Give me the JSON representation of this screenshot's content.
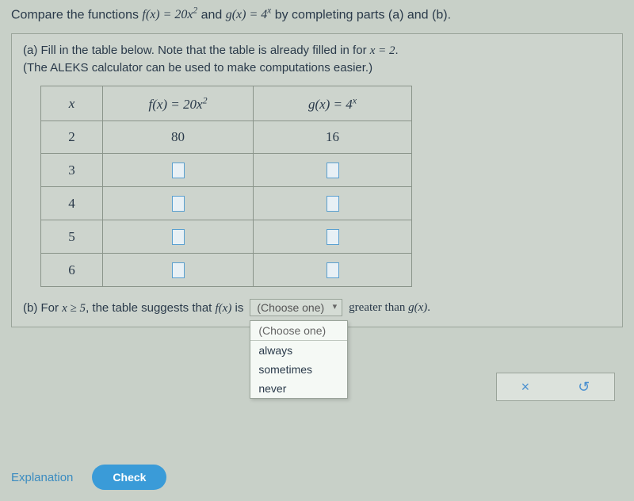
{
  "prompt": {
    "pre": "Compare the functions ",
    "f_expr": "f(x) = 20x",
    "f_sup": "2",
    "mid": " and ",
    "g_expr": "g(x) = 4",
    "g_sup": "x",
    "post": " by completing parts (a) and (b)."
  },
  "part_a": {
    "line1": "(a) Fill in the table below. Note that the table is already filled in for ",
    "cond": "x = 2",
    "line1_post": ".",
    "line2": "(The ALEKS calculator can be used to make computations easier.)"
  },
  "table": {
    "headers": {
      "x": "x",
      "f_pre": "f(x) = 20x",
      "f_sup": "2",
      "g_pre": "g(x) = 4",
      "g_sup": "x"
    },
    "rows": [
      {
        "x": "2",
        "f": "80",
        "g": "16",
        "filled": true
      },
      {
        "x": "3",
        "f": "",
        "g": "",
        "filled": false
      },
      {
        "x": "4",
        "f": "",
        "g": "",
        "filled": false
      },
      {
        "x": "5",
        "f": "",
        "g": "",
        "filled": false
      },
      {
        "x": "6",
        "f": "",
        "g": "",
        "filled": false
      }
    ]
  },
  "part_b": {
    "pre": "(b) For ",
    "cond": "x ≥ 5",
    "mid1": ", the table suggests that ",
    "fx": "f(x)",
    "mid2": " is",
    "trailing_pre": " greater than ",
    "gx": "g(x)",
    "trailing_post": "."
  },
  "dropdown": {
    "placeholder": "(Choose one)",
    "options": [
      "(Choose one)",
      "always",
      "sometimes",
      "never"
    ]
  },
  "buttons": {
    "explanation": "Explanation",
    "check": "Check"
  },
  "tools": {
    "clear": "×",
    "reset": "↺"
  }
}
